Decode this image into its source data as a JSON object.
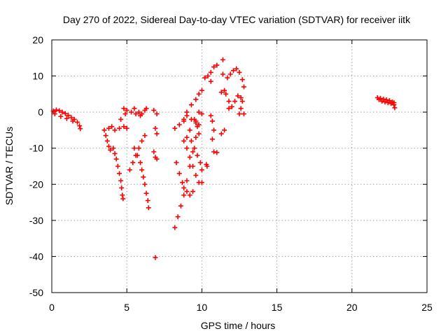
{
  "chart_data": {
    "type": "scatter",
    "title": "Day 270 of 2022, Sidereal Day-to-day VTEC variation (SDTVAR) for receiver iitk",
    "xlabel": "GPS time / hours",
    "ylabel": "SDTVAR / TECUs",
    "xlim": [
      0,
      25
    ],
    "ylim": [
      -50,
      20
    ],
    "xticks": [
      0,
      5,
      10,
      15,
      20,
      25
    ],
    "yticks": [
      -50,
      -40,
      -30,
      -20,
      -10,
      0,
      10,
      20
    ],
    "grid": true,
    "marker": "+",
    "color": "#ff0000",
    "series": [
      {
        "points": [
          [
            0.1,
            0.3
          ],
          [
            0.3,
            0.6
          ],
          [
            0.5,
            0.4
          ],
          [
            0.7,
            0.0
          ],
          [
            0.9,
            -0.4
          ],
          [
            1.1,
            -0.9
          ],
          [
            1.3,
            -1.5
          ],
          [
            1.5,
            -2.0
          ],
          [
            1.7,
            -2.8
          ],
          [
            1.85,
            -3.8
          ],
          [
            1.9,
            -4.6
          ],
          [
            0.2,
            -0.5
          ],
          [
            0.6,
            -1.2
          ],
          [
            1.0,
            -1.8
          ],
          [
            1.4,
            -2.5
          ],
          [
            3.5,
            -5.0
          ],
          [
            3.6,
            -6.5
          ],
          [
            3.7,
            -8.0
          ],
          [
            3.8,
            -9.5
          ],
          [
            3.9,
            -10.5
          ],
          [
            3.8,
            -4.5
          ],
          [
            4.0,
            -4.0
          ],
          [
            4.1,
            -10.0
          ],
          [
            4.2,
            -11.5
          ],
          [
            4.3,
            -13.0
          ],
          [
            4.4,
            -15.0
          ],
          [
            4.5,
            -17.0
          ],
          [
            4.6,
            -19.0
          ],
          [
            4.65,
            -21.0
          ],
          [
            4.7,
            -23.0
          ],
          [
            4.75,
            -24.0
          ],
          [
            4.2,
            -5.0
          ],
          [
            4.5,
            -4.5
          ],
          [
            4.8,
            -4.0
          ],
          [
            5.0,
            -4.5
          ],
          [
            4.6,
            -2.0
          ],
          [
            4.9,
            -0.5
          ],
          [
            4.8,
            1.0
          ],
          [
            5.0,
            0.5
          ],
          [
            5.3,
            0.0
          ],
          [
            5.6,
            -0.5
          ],
          [
            5.9,
            -1.0
          ],
          [
            5.2,
            -16.0
          ],
          [
            5.4,
            -14.0
          ],
          [
            5.6,
            -12.0
          ],
          [
            5.8,
            -10.0
          ],
          [
            6.0,
            -8.0
          ],
          [
            6.2,
            -6.5
          ],
          [
            5.5,
            -10.0
          ],
          [
            5.7,
            -12.0
          ],
          [
            5.9,
            -14.0
          ],
          [
            6.0,
            -16.0
          ],
          [
            6.1,
            -18.0
          ],
          [
            6.2,
            -20.0
          ],
          [
            6.3,
            -22.5
          ],
          [
            6.4,
            -24.5
          ],
          [
            6.45,
            -26.5
          ],
          [
            5.5,
            1.0
          ],
          [
            5.8,
            0.0
          ],
          [
            6.0,
            -0.5
          ],
          [
            6.2,
            0.5
          ],
          [
            6.3,
            1.0
          ],
          [
            6.8,
            0.5
          ],
          [
            7.0,
            -0.5
          ],
          [
            6.9,
            -4.5
          ],
          [
            7.0,
            -6.0
          ],
          [
            6.8,
            -11.0
          ],
          [
            6.9,
            -12.5
          ],
          [
            7.0,
            -13.0
          ],
          [
            6.9,
            -40.3
          ],
          [
            8.2,
            -32.0
          ],
          [
            8.4,
            -29.0
          ],
          [
            8.6,
            -26.0
          ],
          [
            8.8,
            -23.0
          ],
          [
            9.0,
            -19.0
          ],
          [
            9.2,
            -15.0
          ],
          [
            9.4,
            -11.0
          ],
          [
            9.6,
            -7.0
          ],
          [
            9.8,
            -3.5
          ],
          [
            10.0,
            -0.5
          ],
          [
            8.3,
            -14.0
          ],
          [
            8.5,
            -17.0
          ],
          [
            8.7,
            -19.5
          ],
          [
            8.8,
            -21.0
          ],
          [
            9.0,
            -22.0
          ],
          [
            9.2,
            -23.0
          ],
          [
            9.4,
            -22.0
          ],
          [
            8.2,
            -4.5
          ],
          [
            8.5,
            -3.5
          ],
          [
            8.8,
            -2.5
          ],
          [
            9.0,
            -1.0
          ],
          [
            9.3,
            -2.0
          ],
          [
            9.6,
            -3.0
          ],
          [
            9.0,
            -7.0
          ],
          [
            9.2,
            -5.0
          ],
          [
            9.5,
            -2.0
          ],
          [
            9.8,
            0.0
          ],
          [
            9.6,
            -2.5
          ],
          [
            9.7,
            -4.0
          ],
          [
            9.8,
            -6.0
          ],
          [
            8.8,
            -8.0
          ],
          [
            9.0,
            -10.0
          ],
          [
            9.2,
            -12.5
          ],
          [
            9.4,
            -15.0
          ],
          [
            9.6,
            -17.5
          ],
          [
            9.8,
            -19.5
          ],
          [
            9.3,
            -8.0
          ],
          [
            9.5,
            -10.0
          ],
          [
            9.7,
            -12.0
          ],
          [
            9.9,
            -14.0
          ],
          [
            10.0,
            -16.0
          ],
          [
            8.8,
            -2.0
          ],
          [
            9.0,
            0.0
          ],
          [
            9.3,
            2.0
          ],
          [
            9.6,
            3.5
          ],
          [
            9.8,
            5.0
          ],
          [
            10.0,
            6.0
          ],
          [
            10.0,
            -19.5
          ],
          [
            10.3,
            -14.5
          ],
          [
            10.35,
            -15.0
          ],
          [
            10.2,
            9.5
          ],
          [
            10.4,
            10.0
          ],
          [
            10.6,
            11.0
          ],
          [
            10.8,
            12.5
          ],
          [
            11.0,
            13.0
          ],
          [
            10.6,
            8.5
          ],
          [
            10.6,
            -1.0
          ],
          [
            10.7,
            -2.5
          ],
          [
            10.8,
            -5.0
          ],
          [
            10.7,
            -7.5
          ],
          [
            10.8,
            -11.0
          ],
          [
            11.0,
            -11.2
          ],
          [
            11.4,
            14.5
          ],
          [
            11.3,
            5.5
          ],
          [
            11.5,
            6.0
          ],
          [
            11.3,
            -6.0
          ],
          [
            11.5,
            -5.0
          ],
          [
            11.4,
            10.5
          ],
          [
            11.7,
            9.5
          ],
          [
            11.9,
            10.5
          ],
          [
            12.1,
            11.5
          ],
          [
            12.3,
            12.0
          ],
          [
            12.5,
            11.0
          ],
          [
            12.7,
            9.0
          ],
          [
            12.8,
            7.0
          ],
          [
            11.6,
            5.0
          ],
          [
            11.8,
            3.0
          ],
          [
            12.0,
            1.5
          ],
          [
            11.8,
            1.0
          ],
          [
            12.2,
            3.0
          ],
          [
            12.4,
            4.5
          ],
          [
            12.6,
            4.0
          ],
          [
            12.7,
            3.0
          ],
          [
            12.6,
            1.0
          ],
          [
            12.5,
            -0.5
          ],
          [
            12.8,
            -0.5
          ],
          [
            21.7,
            4.0
          ],
          [
            21.9,
            3.8
          ],
          [
            22.1,
            3.6
          ],
          [
            22.3,
            3.4
          ],
          [
            22.5,
            3.2
          ],
          [
            22.7,
            2.8
          ],
          [
            22.8,
            2.0
          ],
          [
            22.85,
            1.2
          ],
          [
            21.8,
            3.5
          ],
          [
            22.0,
            3.0
          ],
          [
            22.2,
            2.8
          ],
          [
            22.4,
            2.6
          ],
          [
            22.6,
            2.4
          ],
          [
            22.8,
            2.6
          ]
        ]
      }
    ]
  }
}
